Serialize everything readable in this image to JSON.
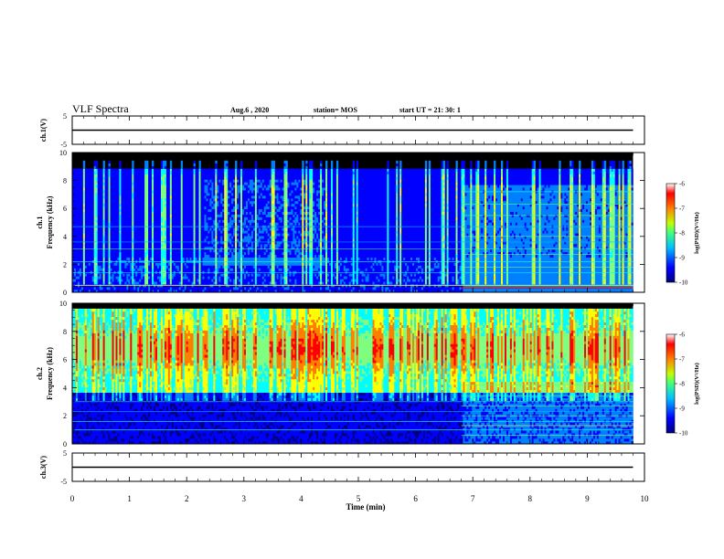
{
  "header": {
    "title": "VLF Spectra",
    "date": "Aug.6 , 2020",
    "station": "station= MOS",
    "start_time": "start UT = 21: 30: 1"
  },
  "chart_data": [
    {
      "type": "line",
      "name": "ch.1 timeseries",
      "ylabel": "ch.1(V)",
      "ylim": [
        -5,
        5
      ],
      "yticks": [
        "5",
        "-5"
      ],
      "xlim": [
        0,
        10
      ],
      "x": [
        0,
        9.8
      ],
      "y": [
        0,
        0
      ]
    },
    {
      "type": "heatmap",
      "name": "ch.1 spectrogram",
      "ylabel": "ch.1 Frequency (kHz)",
      "ylabel_line1": "ch.1",
      "ylabel_line2": "Frequency (kHz)",
      "ylim": [
        0,
        10
      ],
      "yticks": [
        "0",
        "2",
        "4",
        "6",
        "8",
        "10"
      ],
      "xlim": [
        0,
        10
      ],
      "data_end_min": 9.8,
      "colorbar": {
        "min": -10,
        "max": -6,
        "ticks": [
          "-10",
          "-9",
          "-8",
          "-7",
          "-6"
        ],
        "label": "log(PSD)(V²/Hz)"
      }
    },
    {
      "type": "heatmap",
      "name": "ch.2 spectrogram",
      "ylabel": "ch.2 Frequency (kHz)",
      "ylabel_line1": "ch.2",
      "ylabel_line2": "Frequency (kHz)",
      "ylim": [
        0,
        10
      ],
      "yticks": [
        "0",
        "2",
        "4",
        "6",
        "8",
        "10"
      ],
      "xlim": [
        0,
        10
      ],
      "data_end_min": 9.8,
      "colorbar": {
        "min": -10,
        "max": -6,
        "ticks": [
          "-10",
          "-9",
          "-8",
          "-7",
          "-6"
        ],
        "label": "log(PSD)(V²/Hz)"
      }
    },
    {
      "type": "line",
      "name": "ch.3 timeseries",
      "ylabel": "ch.3(V)",
      "ylim": [
        -5,
        5
      ],
      "yticks": [
        "5",
        "-5"
      ],
      "xlim": [
        0,
        10
      ],
      "x": [
        0,
        9.8
      ],
      "y": [
        0,
        0
      ]
    }
  ],
  "xaxis": {
    "label": "Time (min)",
    "ticks": [
      "0",
      "1",
      "2",
      "3",
      "4",
      "5",
      "6",
      "7",
      "8",
      "9",
      "10"
    ]
  },
  "colors": {
    "background": "#000000",
    "colormap": [
      "#00007f",
      "#0000ff",
      "#0080ff",
      "#00ffff",
      "#80ff80",
      "#ffff00",
      "#ff8000",
      "#ff0000",
      "#ffffff"
    ]
  }
}
